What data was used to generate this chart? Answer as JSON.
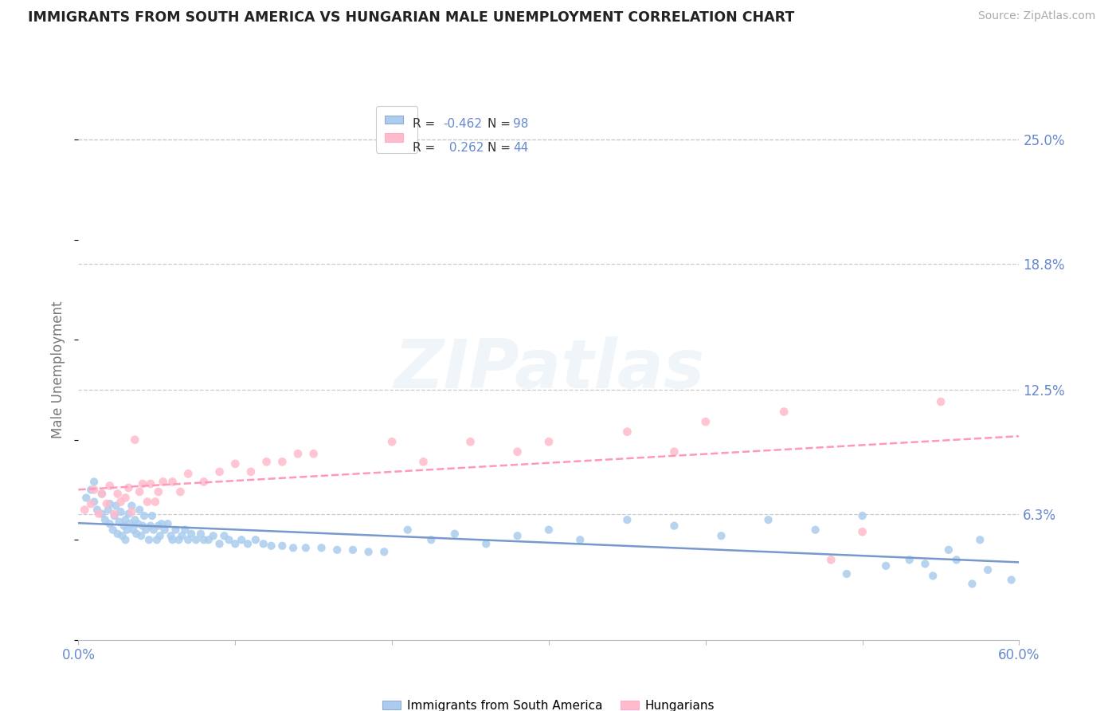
{
  "title": "IMMIGRANTS FROM SOUTH AMERICA VS HUNGARIAN MALE UNEMPLOYMENT CORRELATION CHART",
  "source_text": "Source: ZipAtlas.com",
  "ylabel": "Male Unemployment",
  "xlim": [
    0.0,
    0.6
  ],
  "ylim": [
    0.0,
    0.27
  ],
  "ytick_vals": [
    0.063,
    0.125,
    0.188,
    0.25
  ],
  "ytick_labels": [
    "6.3%",
    "12.5%",
    "18.8%",
    "25.0%"
  ],
  "grid_color": "#cccccc",
  "bg_color": "#ffffff",
  "blue_dot_color": "#aaccee",
  "pink_dot_color": "#ffbbcc",
  "blue_line_color": "#7799cc",
  "pink_line_color": "#ff99bb",
  "axis_text_color": "#6688cc",
  "title_color": "#222222",
  "r_blue": -0.462,
  "n_blue": 98,
  "r_pink": 0.262,
  "n_pink": 44,
  "legend_label_blue": "Immigrants from South America",
  "legend_label_pink": "Hungarians",
  "watermark": "ZIPatlas",
  "blue_x": [
    0.005,
    0.008,
    0.01,
    0.01,
    0.012,
    0.015,
    0.015,
    0.017,
    0.019,
    0.02,
    0.02,
    0.022,
    0.023,
    0.024,
    0.025,
    0.026,
    0.027,
    0.028,
    0.029,
    0.03,
    0.03,
    0.031,
    0.032,
    0.033,
    0.034,
    0.035,
    0.036,
    0.037,
    0.038,
    0.039,
    0.04,
    0.041,
    0.042,
    0.043,
    0.045,
    0.046,
    0.047,
    0.048,
    0.05,
    0.051,
    0.052,
    0.053,
    0.055,
    0.057,
    0.059,
    0.06,
    0.062,
    0.064,
    0.066,
    0.068,
    0.07,
    0.072,
    0.075,
    0.078,
    0.08,
    0.083,
    0.086,
    0.09,
    0.093,
    0.096,
    0.1,
    0.104,
    0.108,
    0.113,
    0.118,
    0.123,
    0.13,
    0.137,
    0.145,
    0.155,
    0.165,
    0.175,
    0.185,
    0.195,
    0.21,
    0.225,
    0.24,
    0.26,
    0.28,
    0.3,
    0.32,
    0.35,
    0.38,
    0.41,
    0.44,
    0.47,
    0.5,
    0.53,
    0.555,
    0.575,
    0.54,
    0.56,
    0.58,
    0.595,
    0.49,
    0.515,
    0.545,
    0.57
  ],
  "blue_y": [
    0.071,
    0.075,
    0.069,
    0.079,
    0.065,
    0.063,
    0.073,
    0.06,
    0.065,
    0.058,
    0.068,
    0.055,
    0.062,
    0.067,
    0.053,
    0.059,
    0.064,
    0.052,
    0.057,
    0.05,
    0.06,
    0.055,
    0.063,
    0.058,
    0.067,
    0.055,
    0.06,
    0.053,
    0.058,
    0.065,
    0.052,
    0.057,
    0.062,
    0.055,
    0.05,
    0.057,
    0.062,
    0.055,
    0.05,
    0.057,
    0.052,
    0.058,
    0.055,
    0.058,
    0.052,
    0.05,
    0.055,
    0.05,
    0.052,
    0.055,
    0.05,
    0.053,
    0.05,
    0.053,
    0.05,
    0.05,
    0.052,
    0.048,
    0.052,
    0.05,
    0.048,
    0.05,
    0.048,
    0.05,
    0.048,
    0.047,
    0.047,
    0.046,
    0.046,
    0.046,
    0.045,
    0.045,
    0.044,
    0.044,
    0.055,
    0.05,
    0.053,
    0.048,
    0.052,
    0.055,
    0.05,
    0.06,
    0.057,
    0.052,
    0.06,
    0.055,
    0.062,
    0.04,
    0.045,
    0.05,
    0.038,
    0.04,
    0.035,
    0.03,
    0.033,
    0.037,
    0.032,
    0.028
  ],
  "pink_x": [
    0.004,
    0.008,
    0.01,
    0.013,
    0.015,
    0.018,
    0.02,
    0.023,
    0.025,
    0.027,
    0.03,
    0.032,
    0.034,
    0.036,
    0.039,
    0.041,
    0.044,
    0.046,
    0.049,
    0.051,
    0.054,
    0.06,
    0.065,
    0.07,
    0.08,
    0.09,
    0.1,
    0.11,
    0.12,
    0.13,
    0.14,
    0.15,
    0.2,
    0.22,
    0.25,
    0.28,
    0.3,
    0.35,
    0.38,
    0.4,
    0.45,
    0.48,
    0.5,
    0.55
  ],
  "pink_y": [
    0.065,
    0.068,
    0.075,
    0.063,
    0.073,
    0.068,
    0.077,
    0.063,
    0.073,
    0.069,
    0.071,
    0.076,
    0.064,
    0.1,
    0.074,
    0.078,
    0.069,
    0.078,
    0.069,
    0.074,
    0.079,
    0.079,
    0.074,
    0.083,
    0.079,
    0.084,
    0.088,
    0.084,
    0.089,
    0.089,
    0.093,
    0.093,
    0.099,
    0.089,
    0.099,
    0.094,
    0.099,
    0.104,
    0.094,
    0.109,
    0.114,
    0.04,
    0.054,
    0.119
  ]
}
